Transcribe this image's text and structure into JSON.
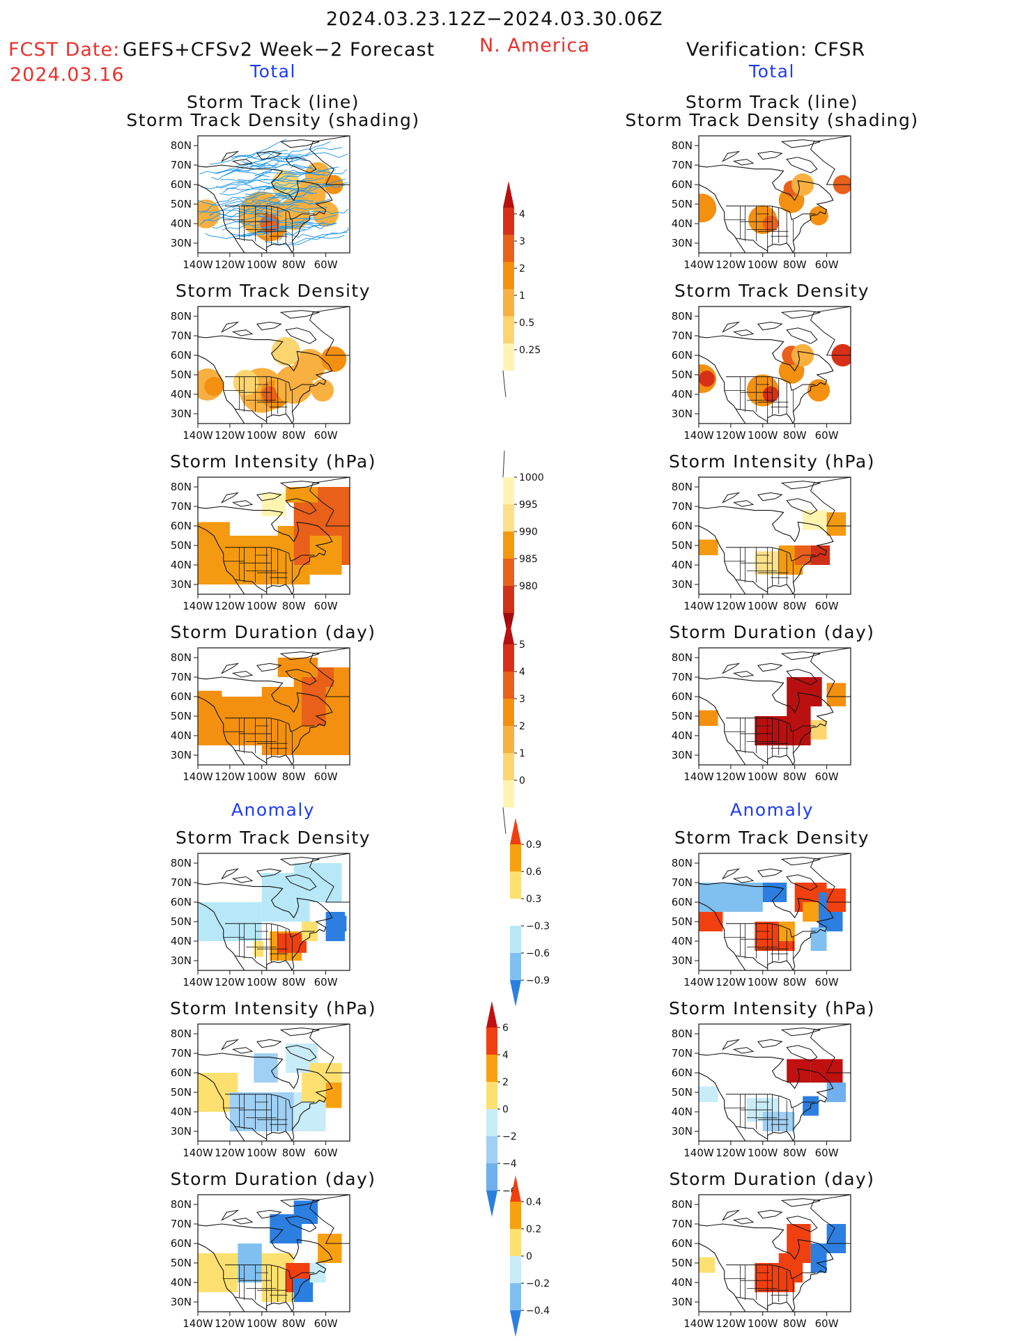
{
  "header": {
    "date_range": "2024.03.23.12Z−2024.03.30.06Z",
    "fcst_label": "FCST Date:",
    "fcst_model": "GEFS+CFSv2 Week−2 Forecast",
    "fcst_date": "2024.03.16",
    "region": "N. America",
    "verification": "Verification: CFSR"
  },
  "sections": {
    "total": "Total",
    "anomaly": "Anomaly"
  },
  "panel_titles": {
    "track_line": "Storm Track (line)",
    "track_shading": "Storm Track Density (shading)",
    "density": "Storm Track Density",
    "intensity": "Storm Intensity (hPa)",
    "duration": "Storm Duration (day)"
  },
  "axes": {
    "lat_ticks": [
      "80N",
      "70N",
      "60N",
      "50N",
      "40N",
      "30N"
    ],
    "lon_ticks": [
      "140W",
      "120W",
      "100W",
      "80W",
      "60W"
    ]
  },
  "colorbars": [
    {
      "name": "total-density",
      "levels": [
        "0.25",
        "0.5",
        "1",
        "2",
        "3",
        "4"
      ],
      "colors": [
        "#fff5b0",
        "#fdd570",
        "#f8b040",
        "#f49010",
        "#e8601a",
        "#d83018",
        "#b81010"
      ]
    },
    {
      "name": "total-intensity",
      "levels": [
        "1000",
        "995",
        "990",
        "985",
        "980"
      ],
      "colors": [
        "#fff5b0",
        "#fde08a",
        "#f49a10",
        "#e8601a",
        "#d03018",
        "#a00a0a"
      ]
    },
    {
      "name": "total-duration",
      "levels": [
        "5",
        "4",
        "3",
        "2",
        "1",
        "0"
      ],
      "colors": [
        "#b81010",
        "#d83018",
        "#e8601a",
        "#f49010",
        "#f8b040",
        "#fdd570",
        "#fff5b0"
      ]
    },
    {
      "name": "anom-density",
      "levels": [
        "0.9",
        "0.6",
        "0.3",
        "−0.3",
        "−0.6",
        "−0.9"
      ],
      "colors": [
        "#f04010",
        "#f8a010",
        "#fde070",
        "#ffffff",
        "#b8e8f8",
        "#80c0f0",
        "#2c7fe0"
      ]
    },
    {
      "name": "anom-intensity",
      "levels": [
        "6",
        "4",
        "2",
        "0",
        "−2",
        "−4",
        "−6"
      ],
      "colors": [
        "#c01010",
        "#f04010",
        "#f8a010",
        "#fde070",
        "#c8ecf8",
        "#a0d0f4",
        "#70b0ec",
        "#2c7fe0"
      ]
    },
    {
      "name": "anom-duration",
      "levels": [
        "0.4",
        "0.2",
        "0",
        "−0.2",
        "−0.4"
      ],
      "colors": [
        "#f04010",
        "#f8a010",
        "#fde070",
        "#c8ecf8",
        "#80c0f0",
        "#2c7fe0"
      ]
    }
  ],
  "colors": {
    "header_red": "#e8312d",
    "section_blue": "#1f3cf5",
    "track_line": "#2a9ae8"
  }
}
